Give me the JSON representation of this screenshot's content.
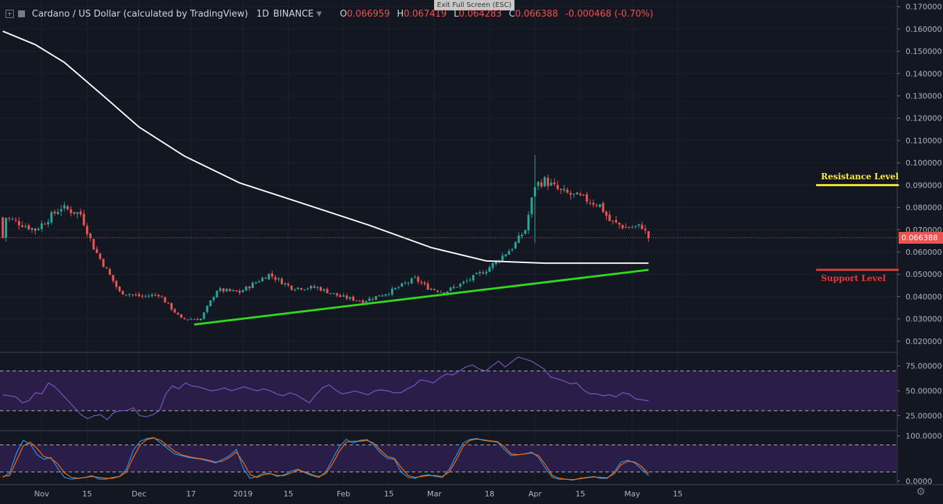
{
  "header": {
    "symbol": "Cardano / US Dollar (calculated by TradingView)",
    "interval": "1D",
    "exchange": "BINANCE",
    "open_label": "O",
    "open": "0.066959",
    "high_label": "H",
    "high": "0.067419",
    "low_label": "L",
    "low": "0.064283",
    "close_label": "C",
    "close": "0.066388",
    "change": "-0.000468 (-0.70%)"
  },
  "exit_fullscreen": "Exit Full Screen (ESC)",
  "last_price_tag": "0.066388",
  "annotations": {
    "resistance": "Resistance Level",
    "support": "Support Level"
  },
  "colors": {
    "background": "#131722",
    "up": "#26a69a",
    "down": "#ef5350",
    "ma": "#ffffff",
    "trendline": "#32d81e",
    "resistance": "#ffeb3b",
    "support": "#e53935",
    "rsi": "#7e57c2",
    "stoch_k": "#2196f3",
    "stoch_d": "#ff6d00",
    "band": "#2a1e48"
  },
  "chart_data": [
    {
      "type": "candlestick",
      "title": "Cardano / US Dollar (calculated by TradingView)",
      "y_ticks": [
        "0.170000",
        "0.160000",
        "0.150000",
        "0.140000",
        "0.130000",
        "0.120000",
        "0.110000",
        "0.100000",
        "0.090000",
        "0.080000",
        "0.070000",
        "0.060000",
        "0.050000",
        "0.040000",
        "0.030000",
        "0.020000"
      ],
      "ylim": [
        0.015,
        0.173
      ],
      "x_ticks": [
        "Nov",
        "15",
        "Dec",
        "17",
        "2019",
        "15",
        "Feb",
        "15",
        "Mar",
        "18",
        "Apr",
        "15",
        "May",
        "15"
      ],
      "key_points": [
        [
          "Oct 21",
          0.0755
        ],
        [
          "Oct 30",
          0.07
        ],
        [
          "Nov 7",
          0.08
        ],
        [
          "Nov 13",
          0.077
        ],
        [
          "Nov 17",
          0.062
        ],
        [
          "Nov 25",
          0.042
        ],
        [
          "Dec 2",
          0.04
        ],
        [
          "Dec 7",
          0.041
        ],
        [
          "Dec 14",
          0.03
        ],
        [
          "Dec 20",
          0.03
        ],
        [
          "Dec 25",
          0.043
        ],
        [
          "Jan 1",
          0.042
        ],
        [
          "Jan 10",
          0.05
        ],
        [
          "Jan 17",
          0.044
        ],
        [
          "Jan 25",
          0.044
        ],
        [
          "Feb 1",
          0.04
        ],
        [
          "Feb 8",
          0.038
        ],
        [
          "Feb 16",
          0.042
        ],
        [
          "Feb 24",
          0.048
        ],
        [
          "Feb 28",
          0.044
        ],
        [
          "Mar 5",
          0.042
        ],
        [
          "Mar 12",
          0.047
        ],
        [
          "Mar 18",
          0.052
        ],
        [
          "Mar 26",
          0.062
        ],
        [
          "Mar 30",
          0.07
        ],
        [
          "Apr 2",
          0.09
        ],
        [
          "Apr 5",
          0.092
        ],
        [
          "Apr 10",
          0.087
        ],
        [
          "Apr 17",
          0.084
        ],
        [
          "Apr 22",
          0.081
        ],
        [
          "Apr 25",
          0.074
        ],
        [
          "Apr 30",
          0.071
        ],
        [
          "May 5",
          0.0715
        ],
        [
          "May 7",
          0.0664
        ]
      ],
      "moving_average": [
        [
          "Oct 20",
          0.159
        ],
        [
          "Oct 30",
          0.153
        ],
        [
          "Nov 8",
          0.145
        ],
        [
          "Nov 20",
          0.13
        ],
        [
          "Dec 1",
          0.116
        ],
        [
          "Dec 15",
          0.103
        ],
        [
          "Jan 1",
          0.091
        ],
        [
          "Jan 20",
          0.082
        ],
        [
          "Feb 10",
          0.072
        ],
        [
          "Mar 1",
          0.062
        ],
        [
          "Mar 18",
          0.056
        ],
        [
          "Apr 5",
          0.055
        ],
        [
          "May 7",
          0.055
        ]
      ],
      "trendline": [
        [
          "Dec 18",
          0.0275
        ],
        [
          "May 7",
          0.052
        ]
      ],
      "resistance_level": 0.09,
      "support_level": 0.052,
      "last_price": 0.066388
    },
    {
      "type": "line",
      "name": "RSI",
      "y_ticks": [
        "75.00000",
        "50.00000",
        "25.00000"
      ],
      "ylim": [
        10,
        88
      ],
      "band": [
        30,
        70
      ],
      "values": [
        46,
        45,
        44,
        38,
        40,
        48,
        47,
        58,
        54,
        47,
        40,
        33,
        26,
        22,
        25,
        26,
        21,
        28,
        30,
        30,
        33,
        25,
        24,
        26,
        30,
        47,
        55,
        52,
        58,
        55,
        54,
        52,
        50,
        51,
        53,
        50,
        52,
        54,
        52,
        50,
        52,
        50,
        47,
        45,
        48,
        46,
        42,
        38,
        46,
        53,
        56,
        51,
        47,
        48,
        50,
        48,
        46,
        50,
        51,
        50,
        48,
        48,
        52,
        55,
        61,
        60,
        58,
        63,
        67,
        66,
        70,
        74,
        76,
        72,
        70,
        75,
        80,
        74,
        79,
        84,
        82,
        80,
        76,
        72,
        64,
        62,
        60,
        57,
        58,
        51,
        47,
        47,
        45,
        46,
        44,
        48,
        47,
        42,
        41,
        40
      ]
    },
    {
      "type": "line",
      "name": "Stochastic RSI",
      "y_ticks": [
        "100.0000",
        "0.0000"
      ],
      "ylim": [
        -8,
        110
      ],
      "band": [
        20,
        80
      ],
      "k_values": [
        8,
        18,
        62,
        90,
        82,
        58,
        48,
        52,
        28,
        8,
        4,
        6,
        8,
        12,
        4,
        4,
        8,
        10,
        26,
        68,
        88,
        94,
        96,
        84,
        72,
        60,
        56,
        52,
        50,
        48,
        44,
        40,
        48,
        56,
        70,
        28,
        6,
        10,
        18,
        16,
        10,
        14,
        22,
        26,
        18,
        12,
        8,
        20,
        48,
        76,
        92,
        84,
        90,
        92,
        80,
        62,
        50,
        48,
        20,
        8,
        6,
        12,
        14,
        10,
        8,
        26,
        56,
        84,
        92,
        94,
        90,
        88,
        86,
        70,
        56,
        58,
        60,
        64,
        52,
        28,
        8,
        4,
        4,
        2,
        6,
        8,
        10,
        6,
        6,
        20,
        42,
        46,
        40,
        26,
        12
      ],
      "d_values": [
        10,
        12,
        45,
        78,
        86,
        72,
        54,
        50,
        38,
        18,
        8,
        6,
        8,
        10,
        8,
        6,
        6,
        10,
        20,
        52,
        80,
        92,
        95,
        90,
        78,
        66,
        58,
        54,
        51,
        49,
        46,
        42,
        44,
        52,
        64,
        42,
        14,
        8,
        14,
        16,
        12,
        12,
        18,
        24,
        20,
        14,
        10,
        16,
        38,
        66,
        86,
        88,
        88,
        90,
        84,
        68,
        54,
        50,
        30,
        12,
        8,
        10,
        12,
        12,
        10,
        20,
        46,
        76,
        90,
        93,
        91,
        89,
        87,
        76,
        60,
        58,
        60,
        62,
        56,
        36,
        12,
        6,
        4,
        3,
        5,
        7,
        9,
        8,
        7,
        16,
        36,
        44,
        42,
        32,
        16
      ]
    }
  ]
}
